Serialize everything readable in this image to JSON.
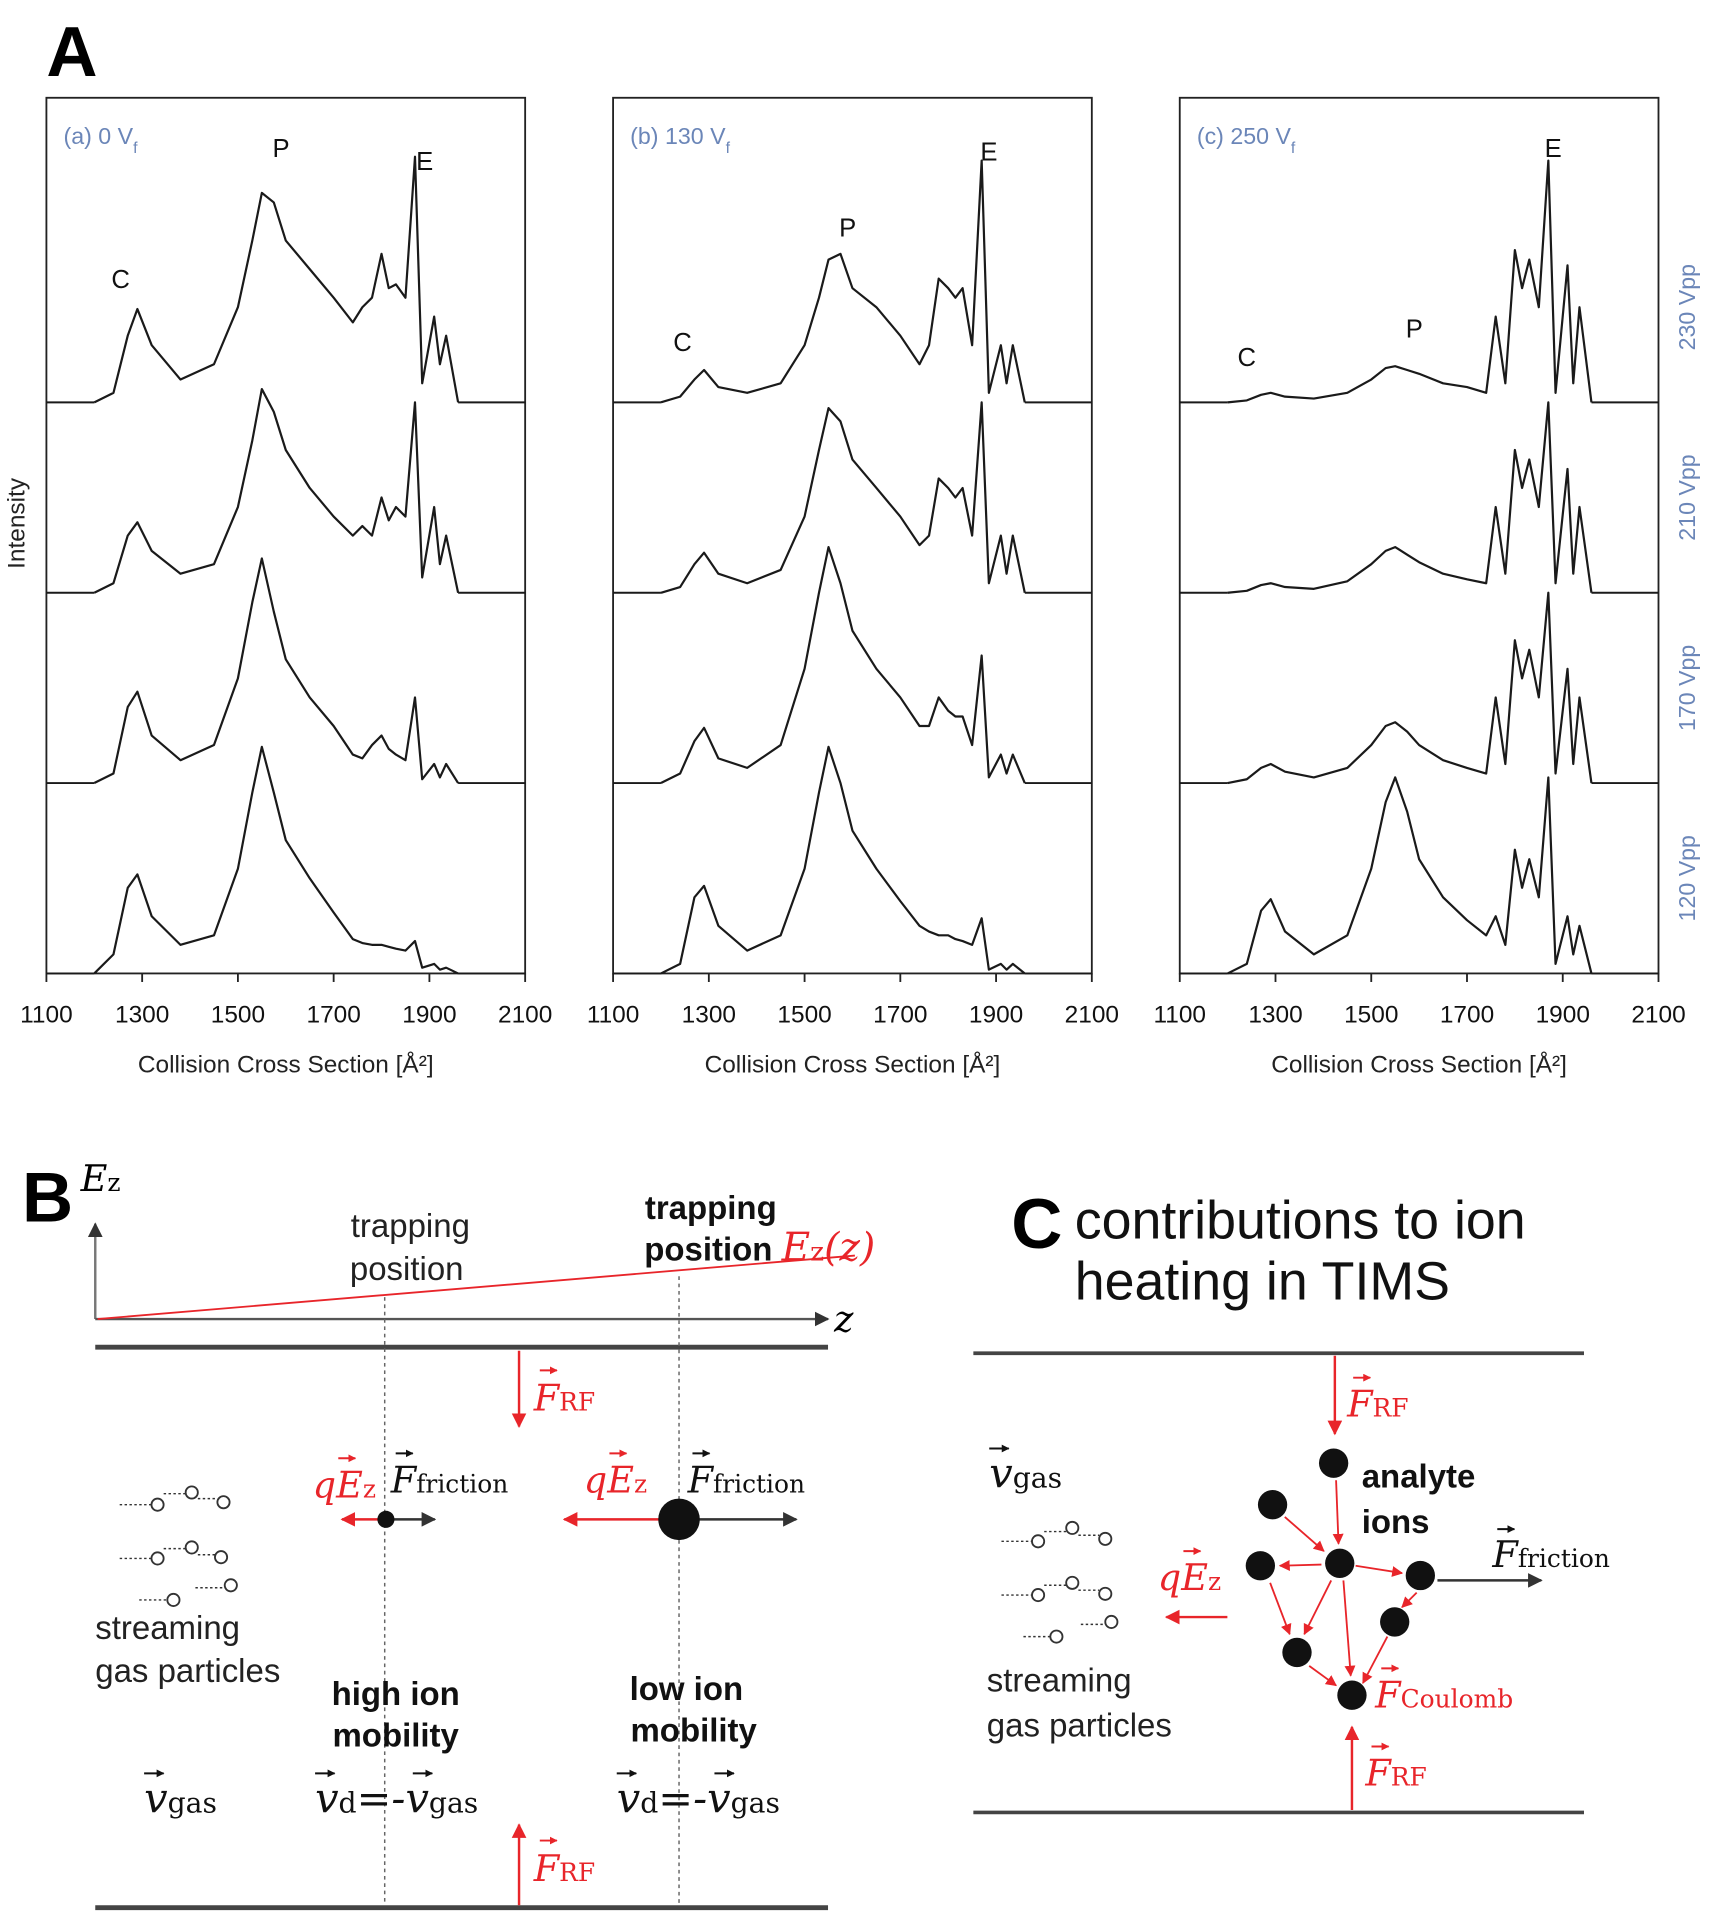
{
  "chart_data": [
    {
      "type": "line",
      "title": {
        "text": "(a) 0 V",
        "subscript": "f"
      },
      "ylabel": "Intensity",
      "xlabel": "Collision Cross Section [Å²]",
      "xlim": [
        1100,
        2100
      ],
      "xticks": [
        1100,
        1300,
        1500,
        1700,
        1900,
        2100
      ],
      "ylim": [
        0,
        4.6
      ],
      "x": [
        1200,
        1240,
        1270,
        1290,
        1320,
        1380,
        1450,
        1500,
        1530,
        1550,
        1575,
        1600,
        1650,
        1700,
        1740,
        1760,
        1780,
        1800,
        1815,
        1830,
        1850,
        1870,
        1885,
        1910,
        1922,
        1935,
        1960
      ],
      "series": [
        {
          "color": "#1a1a1a",
          "values": [
            0,
            0.05,
            0.35,
            0.49,
            0.3,
            0.12,
            0.2,
            0.5,
            0.85,
            1.1,
            1.05,
            0.85,
            0.7,
            0.55,
            0.42,
            0.5,
            0.55,
            0.78,
            0.6,
            0.62,
            0.55,
            1.29,
            0.1,
            0.45,
            0.2,
            0.35,
            0
          ]
        },
        {
          "color": "#1a1a1a",
          "values": [
            0,
            0.05,
            0.3,
            0.37,
            0.22,
            0.1,
            0.15,
            0.45,
            0.8,
            1.07,
            0.95,
            0.75,
            0.55,
            0.4,
            0.3,
            0.35,
            0.3,
            0.5,
            0.38,
            0.45,
            0.4,
            1.0,
            0.08,
            0.45,
            0.15,
            0.3,
            0
          ]
        },
        {
          "color": "#1a1a1a",
          "values": [
            0,
            0.05,
            0.4,
            0.48,
            0.25,
            0.12,
            0.2,
            0.55,
            0.95,
            1.18,
            0.9,
            0.65,
            0.45,
            0.3,
            0.15,
            0.13,
            0.2,
            0.25,
            0.18,
            0.15,
            0.12,
            0.45,
            0.02,
            0.1,
            0.03,
            0.1,
            0
          ]
        },
        {
          "color": "#1a1a1a",
          "values": [
            0,
            0.1,
            0.45,
            0.52,
            0.3,
            0.15,
            0.2,
            0.55,
            0.95,
            1.19,
            0.95,
            0.7,
            0.5,
            0.32,
            0.18,
            0.16,
            0.15,
            0.15,
            0.14,
            0.13,
            0.12,
            0.17,
            0.03,
            0.05,
            0.02,
            0.03,
            0
          ]
        }
      ],
      "annotations": [
        {
          "text": "C",
          "x": 1255,
          "y": 0.6
        },
        {
          "text": "P",
          "x": 1590,
          "y": 1.29
        },
        {
          "text": "E",
          "x": 1890,
          "y": 1.22
        }
      ]
    },
    {
      "type": "line",
      "title": {
        "text": "(b) 130 V",
        "subscript": "f"
      },
      "xlabel": "Collision Cross Section [Å²]",
      "xlim": [
        1100,
        2100
      ],
      "xticks": [
        1100,
        1300,
        1500,
        1700,
        1900,
        2100
      ],
      "ylim": [
        0,
        4.6
      ],
      "x": [
        1200,
        1240,
        1270,
        1290,
        1320,
        1380,
        1450,
        1500,
        1530,
        1550,
        1575,
        1600,
        1650,
        1700,
        1740,
        1760,
        1780,
        1800,
        1815,
        1830,
        1850,
        1870,
        1885,
        1910,
        1922,
        1935,
        1960
      ],
      "series": [
        {
          "color": "#1a1a1a",
          "values": [
            0,
            0.03,
            0.12,
            0.17,
            0.08,
            0.05,
            0.1,
            0.3,
            0.55,
            0.75,
            0.78,
            0.6,
            0.5,
            0.35,
            0.2,
            0.3,
            0.65,
            0.6,
            0.55,
            0.6,
            0.3,
            1.27,
            0.05,
            0.3,
            0.1,
            0.3,
            0
          ]
        },
        {
          "color": "#1a1a1a",
          "values": [
            0,
            0.03,
            0.15,
            0.21,
            0.1,
            0.05,
            0.12,
            0.4,
            0.75,
            0.97,
            0.9,
            0.7,
            0.55,
            0.4,
            0.25,
            0.3,
            0.6,
            0.55,
            0.5,
            0.55,
            0.3,
            1.0,
            0.05,
            0.3,
            0.1,
            0.3,
            0
          ]
        },
        {
          "color": "#1a1a1a",
          "values": [
            0,
            0.05,
            0.22,
            0.29,
            0.13,
            0.08,
            0.2,
            0.6,
            1.0,
            1.24,
            1.05,
            0.8,
            0.6,
            0.45,
            0.3,
            0.3,
            0.45,
            0.38,
            0.35,
            0.35,
            0.2,
            0.67,
            0.03,
            0.15,
            0.05,
            0.15,
            0
          ]
        },
        {
          "color": "#1a1a1a",
          "values": [
            0,
            0.05,
            0.4,
            0.46,
            0.25,
            0.12,
            0.2,
            0.55,
            0.95,
            1.19,
            1.0,
            0.75,
            0.55,
            0.38,
            0.25,
            0.22,
            0.2,
            0.2,
            0.18,
            0.17,
            0.15,
            0.29,
            0.02,
            0.05,
            0.02,
            0.05,
            0
          ]
        }
      ],
      "annotations": [
        {
          "text": "C",
          "x": 1245,
          "y": 0.27
        },
        {
          "text": "P",
          "x": 1590,
          "y": 0.87
        },
        {
          "text": "E",
          "x": 1885,
          "y": 1.27
        }
      ]
    },
    {
      "type": "line",
      "title": {
        "text": "(c) 250 V",
        "subscript": "f"
      },
      "xlabel": "Collision Cross Section [Å²]",
      "xlim": [
        1100,
        2100
      ],
      "xticks": [
        1100,
        1300,
        1500,
        1700,
        1900,
        2100
      ],
      "ylim": [
        0,
        4.6
      ],
      "x": [
        1200,
        1240,
        1270,
        1290,
        1320,
        1380,
        1450,
        1500,
        1530,
        1550,
        1575,
        1600,
        1650,
        1700,
        1740,
        1760,
        1780,
        1800,
        1815,
        1830,
        1850,
        1870,
        1885,
        1910,
        1922,
        1935,
        1960
      ],
      "series": [
        {
          "name": "230 Vpp",
          "color": "#1a1a1a",
          "values": [
            0,
            0.01,
            0.04,
            0.05,
            0.03,
            0.02,
            0.05,
            0.12,
            0.18,
            0.19,
            0.17,
            0.15,
            0.1,
            0.08,
            0.05,
            0.45,
            0.1,
            0.8,
            0.6,
            0.75,
            0.5,
            1.27,
            0.05,
            0.72,
            0.1,
            0.5,
            0
          ]
        },
        {
          "name": "210 Vpp",
          "color": "#1a1a1a",
          "values": [
            0,
            0.01,
            0.04,
            0.05,
            0.03,
            0.02,
            0.06,
            0.15,
            0.22,
            0.24,
            0.2,
            0.16,
            0.1,
            0.07,
            0.05,
            0.45,
            0.1,
            0.75,
            0.55,
            0.7,
            0.45,
            1.0,
            0.05,
            0.65,
            0.1,
            0.45,
            0
          ]
        },
        {
          "name": "170 Vpp",
          "color": "#1a1a1a",
          "values": [
            0,
            0.02,
            0.08,
            0.1,
            0.06,
            0.03,
            0.08,
            0.2,
            0.3,
            0.32,
            0.27,
            0.2,
            0.12,
            0.08,
            0.05,
            0.45,
            0.1,
            0.75,
            0.55,
            0.7,
            0.45,
            1.0,
            0.05,
            0.6,
            0.1,
            0.45,
            0
          ]
        },
        {
          "name": "120 Vpp",
          "color": "#1a1a1a",
          "values": [
            0,
            0.05,
            0.33,
            0.39,
            0.22,
            0.1,
            0.2,
            0.55,
            0.9,
            1.03,
            0.85,
            0.6,
            0.4,
            0.28,
            0.2,
            0.3,
            0.15,
            0.65,
            0.45,
            0.6,
            0.4,
            1.03,
            0.05,
            0.3,
            0.1,
            0.25,
            0
          ]
        }
      ],
      "annotations": [
        {
          "text": "C",
          "x": 1240,
          "y": 0.19
        },
        {
          "text": "P",
          "x": 1590,
          "y": 0.34
        },
        {
          "text": "E",
          "x": 1880,
          "y": 1.29
        }
      ]
    }
  ],
  "panel_labels": [
    "A",
    "B",
    "C"
  ],
  "diagram_b": {
    "axis_y": [
      "E",
      "z"
    ],
    "axis_x": "z",
    "field": [
      "E",
      "z",
      "(z)"
    ],
    "trap_left": [
      "trapping",
      "position"
    ],
    "trap_right": [
      "trapping",
      "position"
    ],
    "force_rf_top": [
      "F",
      "RF"
    ],
    "force_rf_bottom": [
      "F",
      "RF"
    ],
    "electric_left": [
      "q",
      "E",
      "z"
    ],
    "friction_left": [
      "F",
      "friction"
    ],
    "electric_right": [
      "q",
      "E",
      "z"
    ],
    "friction_right": [
      "F",
      "friction"
    ],
    "gas_label": [
      "streaming",
      "gas particles"
    ],
    "high": [
      "high ion",
      "mobility"
    ],
    "low": [
      "low ion",
      "mobility"
    ],
    "v_gas": [
      "v",
      "gas"
    ],
    "drift_left": [
      "v",
      "d",
      "=-",
      "v",
      "gas"
    ],
    "drift_right": [
      "v",
      "d",
      "=-",
      "v",
      "gas"
    ]
  },
  "diagram_c": {
    "title": [
      "contributions to ion",
      "heating in TIMS"
    ],
    "force_rf_top": [
      "F",
      "RF"
    ],
    "force_rf_bottom": [
      "F",
      "RF"
    ],
    "v_gas": [
      "v",
      "gas"
    ],
    "analyte": [
      "analyte",
      "ions"
    ],
    "friction": [
      "F",
      "friction"
    ],
    "electric": [
      "q",
      "E",
      "z"
    ],
    "coulomb": [
      "F",
      "Coulomb"
    ],
    "gas_label": [
      "streaming",
      "gas particles"
    ]
  }
}
